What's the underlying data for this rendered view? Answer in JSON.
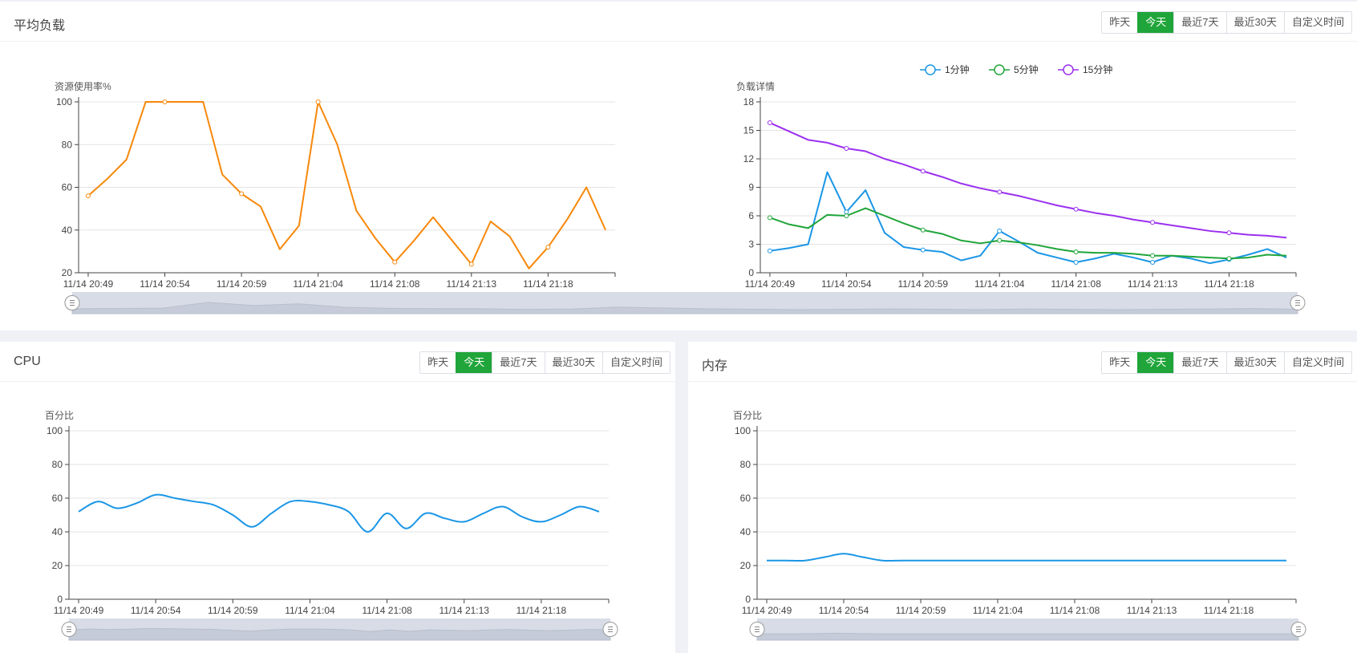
{
  "ranges": [
    "昨天",
    "今天",
    "最近7天",
    "最近30天",
    "自定义时间"
  ],
  "active_range": 1,
  "colors": {
    "green": "#20a53a",
    "orange": "#f7880a",
    "blue": "#1a96e6",
    "green_line": "#20a53a",
    "purple": "#9b30f0"
  },
  "panels": {
    "load": {
      "title": "平均负载"
    },
    "cpu": {
      "title": "CPU"
    },
    "memory": {
      "title": "内存"
    }
  },
  "chart_data": [
    {
      "id": "usage",
      "type": "line",
      "ylabel": "资源使用率%",
      "ylim": [
        20,
        100
      ],
      "yticks": [
        20,
        40,
        60,
        80,
        100
      ],
      "x_count": 28,
      "x_labels": [
        "11/14 20:49",
        "11/14 20:54",
        "11/14 20:59",
        "11/14 21:04",
        "11/14 21:08",
        "11/14 21:13",
        "11/14 21:18"
      ],
      "grid": true,
      "series": [
        {
          "color": "#f7880a",
          "smooth": false,
          "values": [
            56,
            64,
            73,
            100,
            100,
            100,
            100,
            66,
            57,
            51,
            31,
            42,
            100,
            80,
            49,
            36,
            25,
            35,
            46,
            35,
            24,
            44,
            37,
            22,
            32,
            45,
            60,
            40
          ],
          "markers": [
            0,
            4,
            8,
            12,
            16,
            20,
            24
          ]
        }
      ]
    },
    {
      "id": "load-detail",
      "type": "line",
      "ylabel": "负载详情",
      "ylim": [
        0,
        18
      ],
      "yticks": [
        0,
        3,
        6,
        9,
        12,
        15,
        18
      ],
      "x_count": 28,
      "x_labels": [
        "11/14 20:49",
        "11/14 20:54",
        "11/14 20:59",
        "11/14 21:04",
        "11/14 21:08",
        "11/14 21:13",
        "11/14 21:18"
      ],
      "grid": true,
      "legend_position": "top-center",
      "series": [
        {
          "name": "1分钟",
          "color": "#1a96e6",
          "smooth": false,
          "values": [
            2.3,
            2.6,
            3.0,
            10.6,
            6.4,
            8.7,
            4.2,
            2.7,
            2.4,
            2.2,
            1.3,
            1.8,
            4.4,
            3.3,
            2.1,
            1.6,
            1.1,
            1.5,
            2.0,
            1.6,
            1.1,
            1.8,
            1.5,
            1.0,
            1.4,
            1.9,
            2.5,
            1.6
          ],
          "markers": [
            0,
            4,
            8,
            12,
            16,
            20,
            24
          ]
        },
        {
          "name": "5分钟",
          "color": "#20a53a",
          "smooth": false,
          "values": [
            5.8,
            5.1,
            4.7,
            6.1,
            6.0,
            6.8,
            6.0,
            5.2,
            4.5,
            4.1,
            3.4,
            3.1,
            3.4,
            3.2,
            2.9,
            2.5,
            2.2,
            2.1,
            2.1,
            2.0,
            1.8,
            1.8,
            1.7,
            1.6,
            1.5,
            1.6,
            1.9,
            1.8
          ],
          "markers": [
            0,
            4,
            8,
            12,
            16,
            20,
            24
          ]
        },
        {
          "name": "15分钟",
          "color": "#9b30f0",
          "smooth": false,
          "values": [
            15.8,
            14.9,
            14.0,
            13.7,
            13.1,
            12.8,
            12.0,
            11.4,
            10.7,
            10.1,
            9.4,
            8.9,
            8.5,
            8.1,
            7.6,
            7.1,
            6.7,
            6.3,
            6.0,
            5.6,
            5.3,
            5.0,
            4.7,
            4.4,
            4.2,
            4.0,
            3.9,
            3.7
          ],
          "markers": [
            0,
            4,
            8,
            12,
            16,
            20,
            24
          ]
        }
      ]
    },
    {
      "id": "cpu",
      "type": "line",
      "ylabel": "百分比",
      "ylim": [
        0,
        100
      ],
      "yticks": [
        0,
        20,
        40,
        60,
        80,
        100
      ],
      "x_count": 28,
      "x_labels": [
        "11/14 20:49",
        "11/14 20:54",
        "11/14 20:59",
        "11/14 21:04",
        "11/14 21:08",
        "11/14 21:13",
        "11/14 21:18"
      ],
      "grid": true,
      "series": [
        {
          "color": "#1a96e6",
          "smooth": true,
          "values": [
            52,
            58,
            54,
            57,
            62,
            60,
            58,
            56,
            50,
            43,
            51,
            58,
            58,
            56,
            52,
            40,
            51,
            42,
            51,
            48,
            46,
            51,
            55,
            49,
            46,
            50,
            55,
            52
          ],
          "markers": []
        }
      ]
    },
    {
      "id": "memory",
      "type": "line",
      "ylabel": "百分比",
      "ylim": [
        0,
        100
      ],
      "yticks": [
        0,
        20,
        40,
        60,
        80,
        100
      ],
      "x_count": 28,
      "x_labels": [
        "11/14 20:49",
        "11/14 20:54",
        "11/14 20:59",
        "11/14 21:04",
        "11/14 21:08",
        "11/14 21:13",
        "11/14 21:18"
      ],
      "grid": true,
      "series": [
        {
          "color": "#1a96e6",
          "smooth": true,
          "values": [
            23,
            23,
            23,
            25,
            27,
            25,
            23,
            23,
            23,
            23,
            23,
            23,
            23,
            23,
            23,
            23,
            23,
            23,
            23,
            23,
            23,
            23,
            23,
            23,
            23,
            23,
            23,
            23
          ],
          "markers": []
        }
      ]
    }
  ]
}
